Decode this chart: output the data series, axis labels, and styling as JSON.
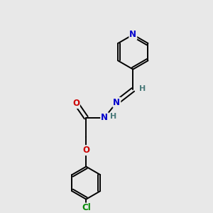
{
  "background_color": "#e8e8e8",
  "bond_color": "#000000",
  "atom_colors": {
    "N": "#0000cc",
    "O": "#cc0000",
    "Cl": "#008800",
    "H": "#4a7a7a"
  },
  "figsize": [
    3.0,
    3.0
  ],
  "dpi": 100,
  "lw": 1.4,
  "fontsize": 8.5
}
